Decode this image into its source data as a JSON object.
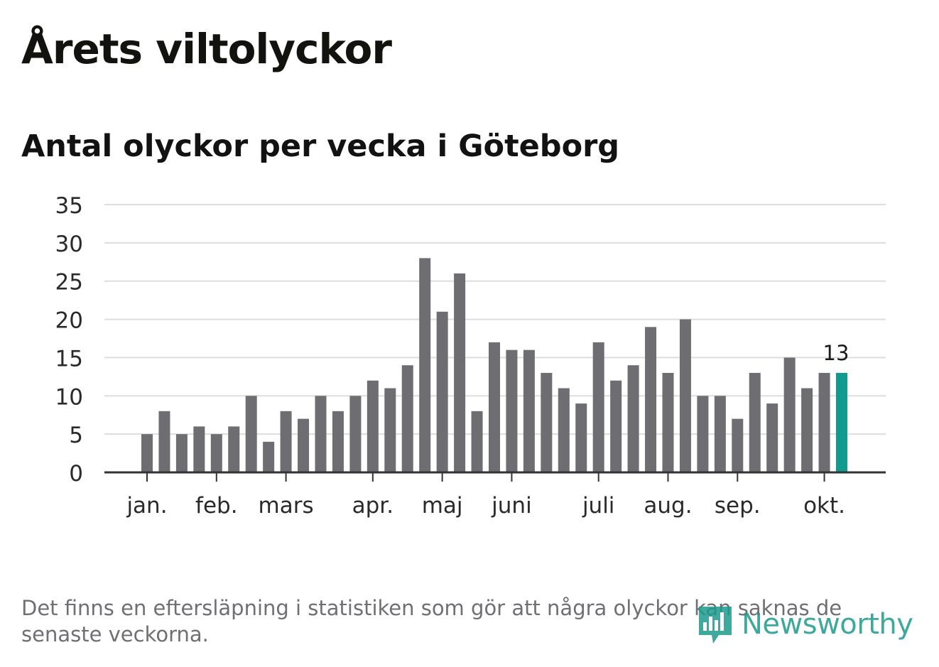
{
  "title": "Årets viltolyckor",
  "subtitle": "Antal olyckor per vecka i Göteborg",
  "footnote": "Det finns en eftersläpning i statistiken som gör att några olyckor kan saknas de senaste veckorna.",
  "brand": {
    "name": "Newsworthy",
    "icon": "newsworthy-logo-icon",
    "color": "#1e9a8c"
  },
  "colors": {
    "bar": "#6e6d72",
    "highlight": "#0f9c8f",
    "grid": "#dddddd",
    "axis": "#333333",
    "text": "#2a2a2a"
  },
  "chart_data": {
    "type": "bar",
    "title": "Antal olyckor per vecka i Göteborg",
    "xlabel": "",
    "ylabel": "",
    "ylim": [
      0,
      35
    ],
    "yticks": [
      0,
      5,
      10,
      15,
      20,
      25,
      30,
      35
    ],
    "grid": true,
    "values": [
      5,
      8,
      5,
      6,
      5,
      6,
      10,
      4,
      8,
      7,
      10,
      8,
      10,
      12,
      11,
      14,
      28,
      21,
      26,
      8,
      17,
      16,
      16,
      13,
      11,
      9,
      17,
      12,
      14,
      19,
      13,
      20,
      10,
      10,
      7,
      13,
      9,
      15,
      11,
      13,
      13
    ],
    "month_labels": [
      {
        "label": "jan.",
        "week_index": 0
      },
      {
        "label": "feb.",
        "week_index": 4
      },
      {
        "label": "mars",
        "week_index": 8
      },
      {
        "label": "apr.",
        "week_index": 13
      },
      {
        "label": "maj",
        "week_index": 17
      },
      {
        "label": "juni",
        "week_index": 21
      },
      {
        "label": "juli",
        "week_index": 26
      },
      {
        "label": "aug.",
        "week_index": 30
      },
      {
        "label": "sep.",
        "week_index": 34
      },
      {
        "label": "okt.",
        "week_index": 39
      }
    ],
    "highlight": {
      "week_index": 40,
      "label": "13"
    }
  }
}
